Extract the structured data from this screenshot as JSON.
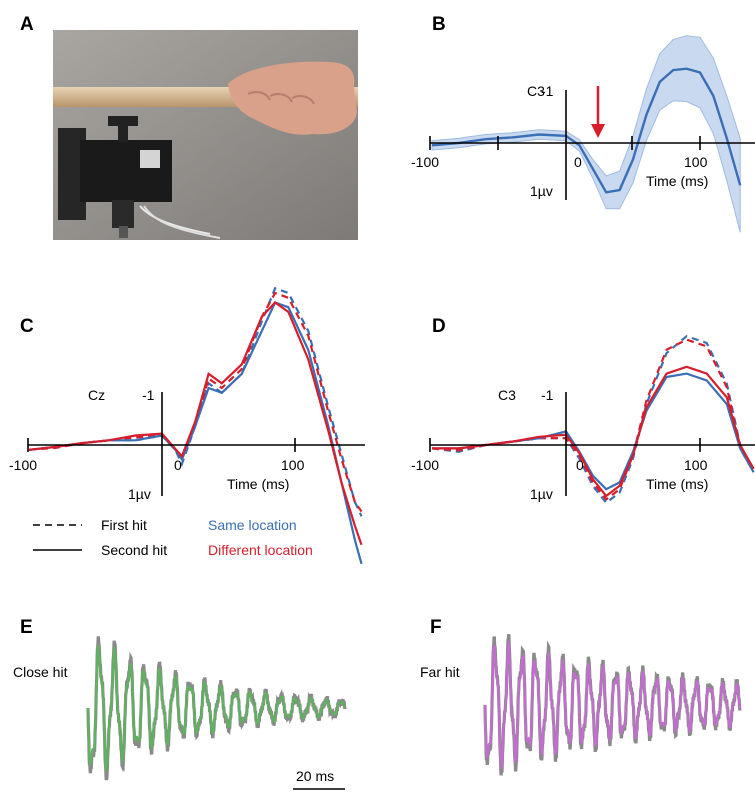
{
  "panels": {
    "a": {
      "label": "A"
    },
    "b": {
      "label": "B",
      "channel": "C3",
      "y_top_tick": "-1",
      "y_bottom_tick": "1µv",
      "x_ticks": [
        "-100",
        "0",
        "100"
      ],
      "xlabel": "Time (ms)"
    },
    "c": {
      "label": "C",
      "channel": "Cz",
      "y_top_tick": "-1",
      "y_bottom_tick": "1µv",
      "x_ticks": [
        "-100",
        "0",
        "100"
      ],
      "xlabel": "Time (ms)"
    },
    "d": {
      "label": "D",
      "channel": "C3",
      "y_top_tick": "-1",
      "y_bottom_tick": "1µv",
      "x_ticks": [
        "-100",
        "0",
        "100"
      ],
      "xlabel": "Time (ms)"
    },
    "e": {
      "label": "E",
      "title": "Close hit",
      "scale_bar": "20 ms"
    },
    "f": {
      "label": "F",
      "title": "Far hit"
    }
  },
  "legend": {
    "first_hit": "First hit",
    "second_hit": "Second hit",
    "same_location": "Same location",
    "different_location": "Different location"
  },
  "colors": {
    "blue": "#3a6fb5",
    "red": "#d81e2c",
    "band": "#c9daf0",
    "green": "#5fb25f",
    "purple": "#c36dd0",
    "gray": "#8a8a8a"
  },
  "chart_data": [
    {
      "panel": "B",
      "type": "line",
      "xlabel": "Time (ms)",
      "ylabel": "C3",
      "xlim": [
        -100,
        130
      ],
      "ylim": [
        -1.7,
        1.7
      ],
      "note_y_inverted": "negative up",
      "series": [
        {
          "style": "mean with shaded band",
          "x": [
            -100,
            -80,
            -60,
            -40,
            -20,
            0,
            10,
            20,
            30,
            40,
            50,
            60,
            70,
            80,
            90,
            100,
            110,
            120,
            130
          ],
          "y": [
            0.05,
            0.0,
            -0.08,
            -0.12,
            -0.18,
            -0.15,
            0.05,
            0.55,
            1.05,
            1.0,
            0.35,
            -0.6,
            -1.3,
            -1.55,
            -1.58,
            -1.5,
            -1.0,
            -0.1,
            0.9
          ],
          "band": [
            0.1,
            0.1,
            0.1,
            0.1,
            0.1,
            0.1,
            0.12,
            0.2,
            0.35,
            0.4,
            0.5,
            0.55,
            0.6,
            0.65,
            0.7,
            0.75,
            0.8,
            0.9,
            1.0
          ]
        }
      ],
      "annotation": {
        "type": "arrow",
        "x": 13
      }
    },
    {
      "panel": "C",
      "type": "line",
      "xlabel": "Time (ms)",
      "ylabel": "Cz",
      "xlim": [
        -100,
        150
      ],
      "ylim": [
        -1.7,
        1.7
      ],
      "x": [
        -100,
        -80,
        -60,
        -40,
        -20,
        0,
        10,
        15,
        25,
        35,
        45,
        60,
        75,
        85,
        95,
        110,
        125,
        135,
        145,
        150
      ],
      "series": [
        {
          "name": "Same location",
          "dash": true,
          "y": [
            0.05,
            0.02,
            -0.02,
            -0.05,
            -0.05,
            -0.1,
            0.05,
            0.2,
            -0.2,
            -0.65,
            -0.55,
            -0.75,
            -1.3,
            -1.65,
            -1.6,
            -1.2,
            -0.4,
            0.1,
            0.6,
            0.75
          ]
        },
        {
          "name": "Different location",
          "dash": true,
          "y": [
            0.05,
            0.03,
            -0.02,
            -0.05,
            -0.08,
            -0.1,
            0.05,
            0.15,
            -0.2,
            -0.7,
            -0.6,
            -0.8,
            -1.35,
            -1.6,
            -1.55,
            -1.15,
            -0.35,
            0.15,
            0.6,
            0.7
          ]
        },
        {
          "name": "Same location",
          "dash": false,
          "y": [
            0.05,
            0.02,
            -0.02,
            -0.05,
            -0.05,
            -0.1,
            0.05,
            0.15,
            -0.2,
            -0.6,
            -0.55,
            -0.75,
            -1.2,
            -1.5,
            -1.45,
            -1.0,
            -0.2,
            0.4,
            1.0,
            1.25
          ]
        },
        {
          "name": "Different location",
          "dash": false,
          "y": [
            0.05,
            0.02,
            -0.02,
            -0.05,
            -0.1,
            -0.12,
            0.04,
            0.12,
            -0.25,
            -0.75,
            -0.65,
            -0.85,
            -1.35,
            -1.5,
            -1.4,
            -0.9,
            -0.15,
            0.4,
            0.85,
            1.05
          ]
        }
      ]
    },
    {
      "panel": "D",
      "type": "line",
      "xlabel": "Time (ms)",
      "ylabel": "C3",
      "xlim": [
        -100,
        140
      ],
      "ylim": [
        -1.7,
        1.7
      ],
      "x": [
        -100,
        -80,
        -60,
        -40,
        -20,
        0,
        10,
        20,
        30,
        40,
        50,
        60,
        75,
        90,
        105,
        120,
        130,
        140
      ],
      "series": [
        {
          "name": "Same location",
          "dash": true,
          "y": [
            0.05,
            0.1,
            0.0,
            -0.05,
            -0.1,
            -0.1,
            0.2,
            0.6,
            0.85,
            0.7,
            0.2,
            -0.6,
            -1.35,
            -1.6,
            -1.5,
            -0.9,
            0.0,
            0.4
          ]
        },
        {
          "name": "Different location",
          "dash": true,
          "y": [
            0.05,
            0.08,
            0.0,
            -0.05,
            -0.1,
            -0.1,
            0.15,
            0.55,
            0.8,
            0.65,
            0.15,
            -0.65,
            -1.4,
            -1.55,
            -1.45,
            -0.85,
            0.05,
            0.4
          ]
        },
        {
          "name": "Same location",
          "dash": false,
          "y": [
            0.05,
            0.05,
            0.0,
            -0.05,
            -0.1,
            -0.2,
            0.1,
            0.45,
            0.65,
            0.55,
            0.1,
            -0.5,
            -1.0,
            -1.05,
            -0.95,
            -0.6,
            0.05,
            0.4
          ]
        },
        {
          "name": "Different location",
          "dash": false,
          "y": [
            0.05,
            0.05,
            0.0,
            -0.05,
            -0.12,
            -0.15,
            0.12,
            0.5,
            0.75,
            0.6,
            0.15,
            -0.55,
            -1.05,
            -1.15,
            -1.05,
            -0.7,
            0.0,
            0.35
          ]
        }
      ]
    }
  ]
}
